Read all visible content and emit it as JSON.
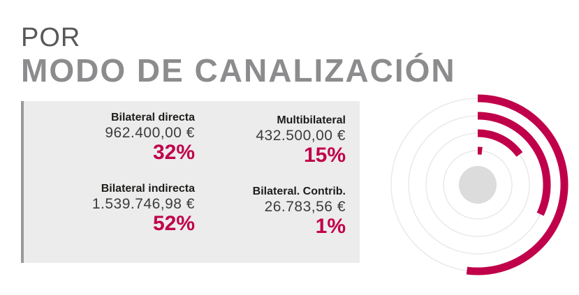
{
  "header": {
    "pre": "POR",
    "title": "MODO DE CANALIZACIÓN"
  },
  "colors": {
    "accent": "#c0004a",
    "track": "#e9e9e9",
    "center": "#dcdcdc",
    "title_gray": "#8c8c8e",
    "panel_bg": "#ececec"
  },
  "items": [
    {
      "label": "Bilateral directa",
      "amount": "962.400,00 €",
      "percent": "32%"
    },
    {
      "label": "Multibilateral",
      "amount": "432.500,00 €",
      "percent": "15%"
    },
    {
      "label": "Bilateral indirecta",
      "amount": "1.539.746,98 €",
      "percent": "52%"
    },
    {
      "label": "Bilateral. Contrib.",
      "amount": "26.783,56 €",
      "percent": "1%"
    }
  ],
  "chart_data": {
    "type": "radial_bar",
    "categories": [
      "Bilateral indirecta",
      "Bilateral directa",
      "Multibilateral",
      "Bilateral. Contrib."
    ],
    "values": [
      52,
      32,
      15,
      1
    ],
    "unit": "%",
    "max": 100
  }
}
